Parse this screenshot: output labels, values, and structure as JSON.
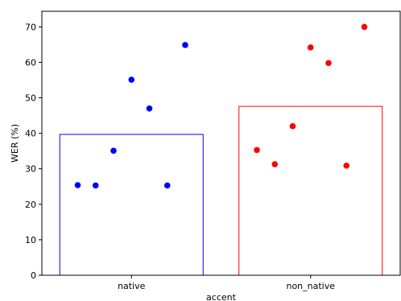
{
  "chart_data": {
    "type": "bar",
    "categories": [
      "native",
      "non_native"
    ],
    "bar_values": [
      39.7,
      47.6
    ],
    "series": [
      {
        "category": "native",
        "color": "#0000ff",
        "points": [
          {
            "x": -0.3,
            "y": 25.4
          },
          {
            "x": -0.2,
            "y": 25.3
          },
          {
            "x": -0.1,
            "y": 35.1
          },
          {
            "x": 0.0,
            "y": 55.1
          },
          {
            "x": 0.1,
            "y": 47.0
          },
          {
            "x": 0.2,
            "y": 25.3
          },
          {
            "x": 0.3,
            "y": 64.9
          }
        ]
      },
      {
        "category": "non_native",
        "color": "#ff0000",
        "points": [
          {
            "x": -0.3,
            "y": 35.3
          },
          {
            "x": -0.2,
            "y": 31.3
          },
          {
            "x": -0.1,
            "y": 42.0
          },
          {
            "x": 0.0,
            "y": 64.2
          },
          {
            "x": 0.1,
            "y": 59.8
          },
          {
            "x": 0.2,
            "y": 30.9
          },
          {
            "x": 0.3,
            "y": 70.0
          }
        ]
      }
    ],
    "xlabel": "accent",
    "ylabel": "WER (%)",
    "ylim": [
      0,
      74.4
    ],
    "yticks": [
      0,
      10,
      20,
      30,
      40,
      50,
      60,
      70
    ],
    "grid": false
  }
}
